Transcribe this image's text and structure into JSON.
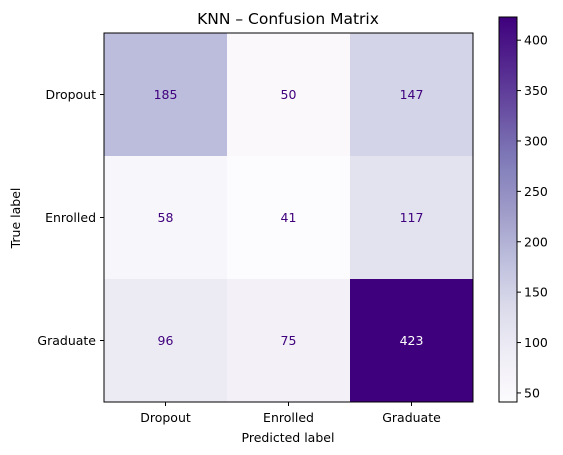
{
  "chart_data": {
    "type": "heatmap",
    "title": "KNN – Confusion Matrix",
    "xlabel": "Predicted label",
    "ylabel": "True label",
    "x_categories": [
      "Dropout",
      "Enrolled",
      "Graduate"
    ],
    "y_categories": [
      "Dropout",
      "Enrolled",
      "Graduate"
    ],
    "values": [
      [
        185,
        50,
        147
      ],
      [
        58,
        41,
        117
      ],
      [
        96,
        75,
        423
      ]
    ],
    "colormap": "Purples",
    "vmin": 41,
    "vmax": 423,
    "colorbar_ticks": [
      50,
      100,
      150,
      200,
      250,
      300,
      350,
      400
    ],
    "grid": false
  }
}
